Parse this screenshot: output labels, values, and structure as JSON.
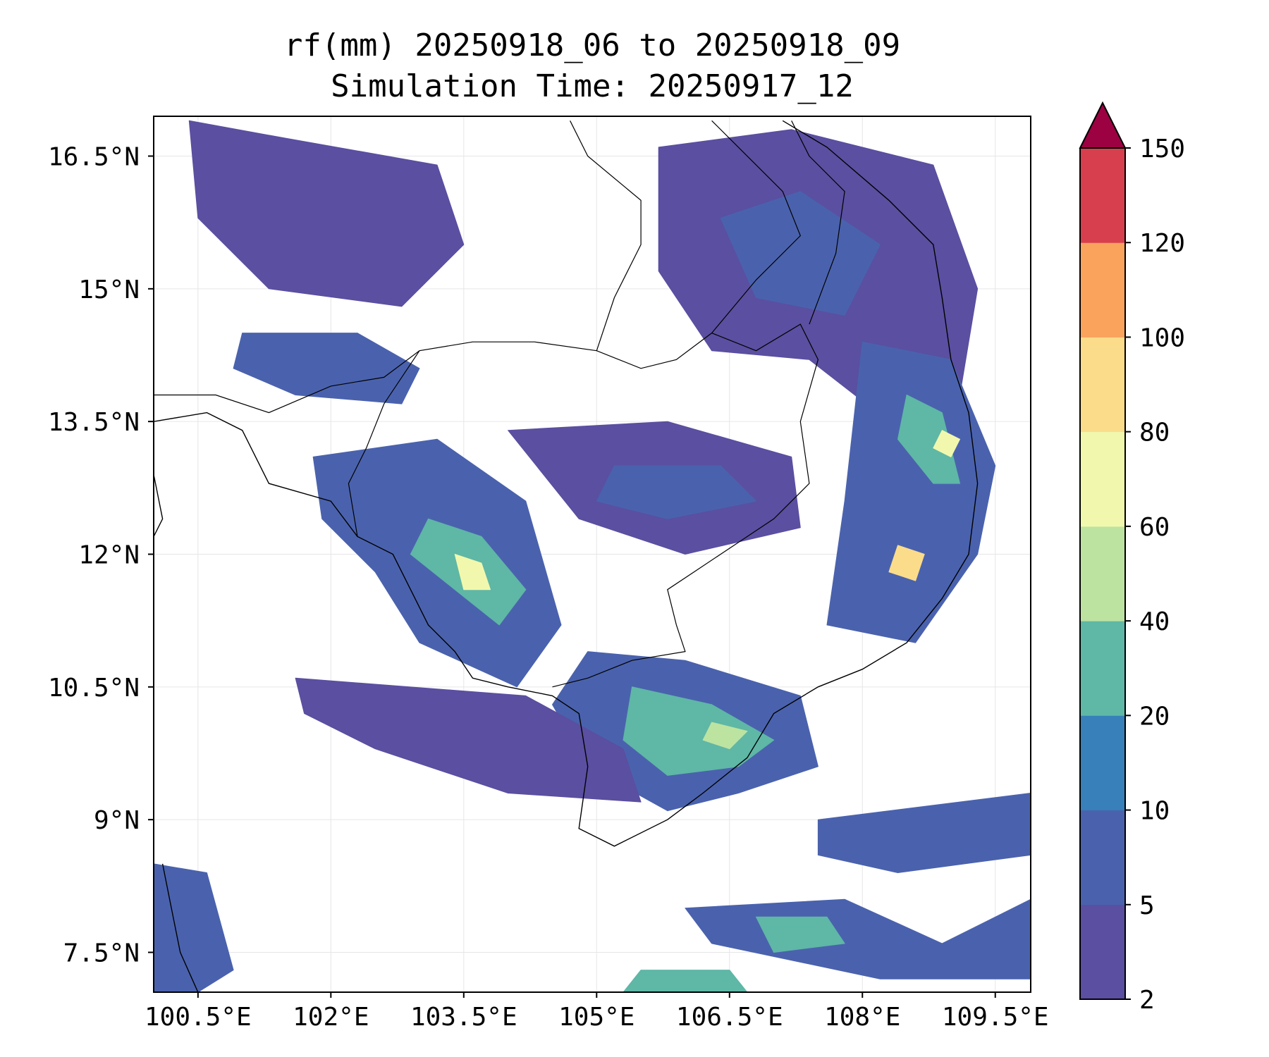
{
  "title": {
    "line1": "rf(mm) 20250918_06 to 20250918_09",
    "line2": "Simulation Time: 20250917_12"
  },
  "map": {
    "lon_range": [
      100.0,
      109.9
    ],
    "lat_range": [
      7.05,
      16.95
    ],
    "x_ticks": [
      {
        "value": 100.5,
        "label": "100.5°E"
      },
      {
        "value": 102.0,
        "label": "102°E"
      },
      {
        "value": 103.5,
        "label": "103.5°E"
      },
      {
        "value": 105.0,
        "label": "105°E"
      },
      {
        "value": 106.5,
        "label": "106.5°E"
      },
      {
        "value": 108.0,
        "label": "108°E"
      },
      {
        "value": 109.5,
        "label": "109.5°E"
      }
    ],
    "y_ticks": [
      {
        "value": 7.5,
        "label": "7.5°N"
      },
      {
        "value": 9.0,
        "label": "9°N"
      },
      {
        "value": 10.5,
        "label": "10.5°N"
      },
      {
        "value": 12.0,
        "label": "12°N"
      },
      {
        "value": 13.5,
        "label": "13.5°N"
      },
      {
        "value": 15.0,
        "label": "15°N"
      },
      {
        "value": 16.5,
        "label": "16.5°N"
      }
    ],
    "grid": true
  },
  "colorbar": {
    "levels": [
      "2",
      "5",
      "10",
      "20",
      "40",
      "60",
      "80",
      "100",
      "120",
      "150"
    ],
    "colors": [
      "#5a4fa0",
      "#4a62ad",
      "#3880b9",
      "#5fb7a6",
      "#bde3a1",
      "#f1f8ae",
      "#fbdc8a",
      "#f9a35d",
      "#d83f4e"
    ],
    "extend_color": "#9c0142",
    "extend": "max"
  },
  "rain_regions": [
    {
      "name": "north-west-mountains",
      "points": [
        [
          100.4,
          16.9
        ],
        [
          101.5,
          16.7
        ],
        [
          103.2,
          16.4
        ],
        [
          103.5,
          15.5
        ],
        [
          102.8,
          14.8
        ],
        [
          101.3,
          15.0
        ],
        [
          100.5,
          15.8
        ]
      ],
      "level": 0
    },
    {
      "name": "tonle-sap-northwest",
      "points": [
        [
          101.0,
          14.5
        ],
        [
          102.3,
          14.5
        ],
        [
          103.0,
          14.1
        ],
        [
          102.8,
          13.7
        ],
        [
          101.6,
          13.8
        ],
        [
          100.9,
          14.1
        ]
      ],
      "level": 1
    },
    {
      "name": "cardamom-band",
      "points": [
        [
          101.8,
          13.1
        ],
        [
          103.2,
          13.3
        ],
        [
          104.2,
          12.6
        ],
        [
          104.6,
          11.2
        ],
        [
          104.1,
          10.5
        ],
        [
          103.0,
          11.0
        ],
        [
          102.5,
          11.8
        ],
        [
          101.9,
          12.4
        ]
      ],
      "level": 1
    },
    {
      "name": "cardamom-core",
      "points": [
        [
          103.1,
          12.4
        ],
        [
          103.7,
          12.2
        ],
        [
          104.2,
          11.6
        ],
        [
          103.9,
          11.2
        ],
        [
          103.4,
          11.6
        ],
        [
          102.9,
          12.0
        ]
      ],
      "level": 3
    },
    {
      "name": "cardamom-peak",
      "points": [
        [
          103.4,
          12.0
        ],
        [
          103.7,
          11.9
        ],
        [
          103.8,
          11.6
        ],
        [
          103.5,
          11.6
        ]
      ],
      "level": 5
    },
    {
      "name": "central-highlands",
      "points": [
        [
          104.0,
          13.4
        ],
        [
          105.8,
          13.5
        ],
        [
          107.2,
          13.1
        ],
        [
          107.3,
          12.3
        ],
        [
          106.0,
          12.0
        ],
        [
          104.8,
          12.4
        ]
      ],
      "level": 0
    },
    {
      "name": "central-highlands-core",
      "points": [
        [
          105.2,
          13.0
        ],
        [
          106.4,
          13.0
        ],
        [
          106.8,
          12.6
        ],
        [
          105.8,
          12.4
        ],
        [
          105.0,
          12.6
        ]
      ],
      "level": 1
    },
    {
      "name": "laos-east",
      "points": [
        [
          105.7,
          16.6
        ],
        [
          107.2,
          16.8
        ],
        [
          108.8,
          16.4
        ],
        [
          109.3,
          15.0
        ],
        [
          109.1,
          13.8
        ],
        [
          108.3,
          13.5
        ],
        [
          107.4,
          14.2
        ],
        [
          106.3,
          14.3
        ],
        [
          105.7,
          15.2
        ]
      ],
      "level": 0
    },
    {
      "name": "laos-east-core",
      "points": [
        [
          106.4,
          15.8
        ],
        [
          107.3,
          16.1
        ],
        [
          108.2,
          15.5
        ],
        [
          107.8,
          14.7
        ],
        [
          106.8,
          14.9
        ]
      ],
      "level": 1
    },
    {
      "name": "coast-central",
      "points": [
        [
          108.0,
          14.4
        ],
        [
          109.0,
          14.2
        ],
        [
          109.5,
          13.0
        ],
        [
          109.3,
          12.0
        ],
        [
          108.6,
          11.0
        ],
        [
          107.6,
          11.2
        ],
        [
          107.8,
          12.6
        ]
      ],
      "level": 1
    },
    {
      "name": "coast-central-core",
      "points": [
        [
          108.5,
          13.8
        ],
        [
          108.9,
          13.6
        ],
        [
          109.1,
          12.8
        ],
        [
          108.8,
          12.8
        ],
        [
          108.4,
          13.3
        ]
      ],
      "level": 3
    },
    {
      "name": "coast-peak-a",
      "points": [
        [
          108.4,
          12.1
        ],
        [
          108.7,
          12.0
        ],
        [
          108.6,
          11.7
        ],
        [
          108.3,
          11.8
        ]
      ],
      "level": 6
    },
    {
      "name": "coast-peak-b",
      "points": [
        [
          108.9,
          13.4
        ],
        [
          109.1,
          13.3
        ],
        [
          109.0,
          13.1
        ],
        [
          108.8,
          13.2
        ]
      ],
      "level": 5
    },
    {
      "name": "mekong-delta",
      "points": [
        [
          104.9,
          10.9
        ],
        [
          106.0,
          10.8
        ],
        [
          107.3,
          10.4
        ],
        [
          107.5,
          9.6
        ],
        [
          106.6,
          9.3
        ],
        [
          105.8,
          9.1
        ],
        [
          104.9,
          9.6
        ],
        [
          104.5,
          10.3
        ]
      ],
      "level": 1
    },
    {
      "name": "mekong-delta-core",
      "points": [
        [
          105.4,
          10.5
        ],
        [
          106.3,
          10.3
        ],
        [
          107.0,
          9.9
        ],
        [
          106.6,
          9.6
        ],
        [
          105.8,
          9.5
        ],
        [
          105.3,
          9.9
        ]
      ],
      "level": 3
    },
    {
      "name": "mekong-delta-peak",
      "points": [
        [
          106.3,
          10.1
        ],
        [
          106.7,
          10.0
        ],
        [
          106.5,
          9.8
        ],
        [
          106.2,
          9.9
        ]
      ],
      "level": 4
    },
    {
      "name": "gulf-streaks",
      "points": [
        [
          101.6,
          10.6
        ],
        [
          104.2,
          10.4
        ],
        [
          105.3,
          9.8
        ],
        [
          105.5,
          9.2
        ],
        [
          104.0,
          9.3
        ],
        [
          102.5,
          9.8
        ],
        [
          101.7,
          10.2
        ]
      ],
      "level": 0
    },
    {
      "name": "southeast-sea-band",
      "points": [
        [
          107.5,
          9.0
        ],
        [
          109.9,
          9.3
        ],
        [
          109.9,
          8.6
        ],
        [
          108.4,
          8.4
        ],
        [
          107.5,
          8.6
        ]
      ],
      "level": 1
    },
    {
      "name": "south-sea-band",
      "points": [
        [
          106.0,
          8.0
        ],
        [
          107.8,
          8.1
        ],
        [
          108.9,
          7.6
        ],
        [
          109.9,
          8.1
        ],
        [
          109.9,
          7.2
        ],
        [
          108.2,
          7.2
        ],
        [
          106.3,
          7.6
        ]
      ],
      "level": 1
    },
    {
      "name": "south-sea-core",
      "points": [
        [
          106.8,
          7.9
        ],
        [
          107.6,
          7.9
        ],
        [
          107.8,
          7.6
        ],
        [
          107.0,
          7.5
        ]
      ],
      "level": 3
    },
    {
      "name": "far-south-west",
      "points": [
        [
          100.0,
          8.5
        ],
        [
          100.6,
          8.4
        ],
        [
          100.9,
          7.3
        ],
        [
          100.5,
          7.05
        ],
        [
          100.0,
          7.05
        ]
      ],
      "level": 1
    },
    {
      "name": "bottom-edge-core",
      "points": [
        [
          105.5,
          7.3
        ],
        [
          106.5,
          7.3
        ],
        [
          106.7,
          7.05
        ],
        [
          105.3,
          7.05
        ]
      ],
      "level": 3
    }
  ],
  "coastlines": [
    [
      [
        100.0,
        13.5
      ],
      [
        100.6,
        13.6
      ],
      [
        101.0,
        13.4
      ],
      [
        101.3,
        12.8
      ],
      [
        102.0,
        12.6
      ],
      [
        102.3,
        12.2
      ],
      [
        102.7,
        12.0
      ],
      [
        102.9,
        11.6
      ],
      [
        103.1,
        11.2
      ],
      [
        103.4,
        10.9
      ],
      [
        103.6,
        10.6
      ],
      [
        104.0,
        10.5
      ],
      [
        104.5,
        10.4
      ],
      [
        104.8,
        10.2
      ],
      [
        104.9,
        9.6
      ],
      [
        104.8,
        8.9
      ],
      [
        105.2,
        8.7
      ],
      [
        105.8,
        9.0
      ],
      [
        106.2,
        9.3
      ],
      [
        106.7,
        9.7
      ],
      [
        107.0,
        10.2
      ],
      [
        107.5,
        10.5
      ],
      [
        108.0,
        10.7
      ],
      [
        108.5,
        11.0
      ],
      [
        108.9,
        11.5
      ],
      [
        109.2,
        12.0
      ],
      [
        109.3,
        12.8
      ],
      [
        109.2,
        13.6
      ],
      [
        109.0,
        14.2
      ],
      [
        108.9,
        14.9
      ],
      [
        108.8,
        15.5
      ],
      [
        108.3,
        16.0
      ],
      [
        107.6,
        16.6
      ],
      [
        107.1,
        16.9
      ]
    ],
    [
      [
        100.0,
        12.9
      ],
      [
        100.1,
        12.4
      ],
      [
        100.0,
        12.2
      ]
    ],
    [
      [
        100.1,
        8.5
      ],
      [
        100.2,
        8.0
      ],
      [
        100.3,
        7.5
      ],
      [
        100.5,
        7.05
      ]
    ]
  ],
  "borders": [
    [
      [
        100.0,
        13.8
      ],
      [
        100.7,
        13.8
      ],
      [
        101.3,
        13.6
      ],
      [
        102.0,
        13.9
      ],
      [
        102.6,
        14.0
      ],
      [
        103.0,
        14.3
      ],
      [
        103.6,
        14.4
      ],
      [
        104.3,
        14.4
      ],
      [
        105.0,
        14.3
      ],
      [
        105.5,
        14.1
      ],
      [
        105.9,
        14.2
      ],
      [
        106.3,
        14.5
      ],
      [
        106.8,
        14.3
      ],
      [
        107.3,
        14.6
      ],
      [
        107.5,
        14.2
      ],
      [
        107.3,
        13.5
      ],
      [
        107.4,
        12.8
      ],
      [
        107.0,
        12.4
      ],
      [
        106.4,
        12.0
      ],
      [
        106.1,
        11.8
      ],
      [
        105.8,
        11.6
      ],
      [
        105.9,
        11.2
      ],
      [
        106.0,
        10.9
      ],
      [
        105.4,
        10.8
      ],
      [
        104.9,
        10.6
      ],
      [
        104.5,
        10.5
      ]
    ],
    [
      [
        103.0,
        14.3
      ],
      [
        102.6,
        13.7
      ],
      [
        102.4,
        13.2
      ],
      [
        102.2,
        12.8
      ],
      [
        102.3,
        12.2
      ]
    ],
    [
      [
        105.0,
        14.3
      ],
      [
        105.2,
        14.9
      ],
      [
        105.5,
        15.5
      ],
      [
        105.5,
        16.0
      ],
      [
        104.9,
        16.5
      ],
      [
        104.7,
        16.9
      ]
    ],
    [
      [
        106.3,
        14.5
      ],
      [
        106.8,
        15.1
      ],
      [
        107.3,
        15.6
      ],
      [
        107.1,
        16.1
      ],
      [
        106.6,
        16.6
      ],
      [
        106.3,
        16.9
      ]
    ],
    [
      [
        107.4,
        14.6
      ],
      [
        107.7,
        15.4
      ],
      [
        107.8,
        16.1
      ],
      [
        107.4,
        16.5
      ],
      [
        107.2,
        16.9
      ]
    ]
  ]
}
